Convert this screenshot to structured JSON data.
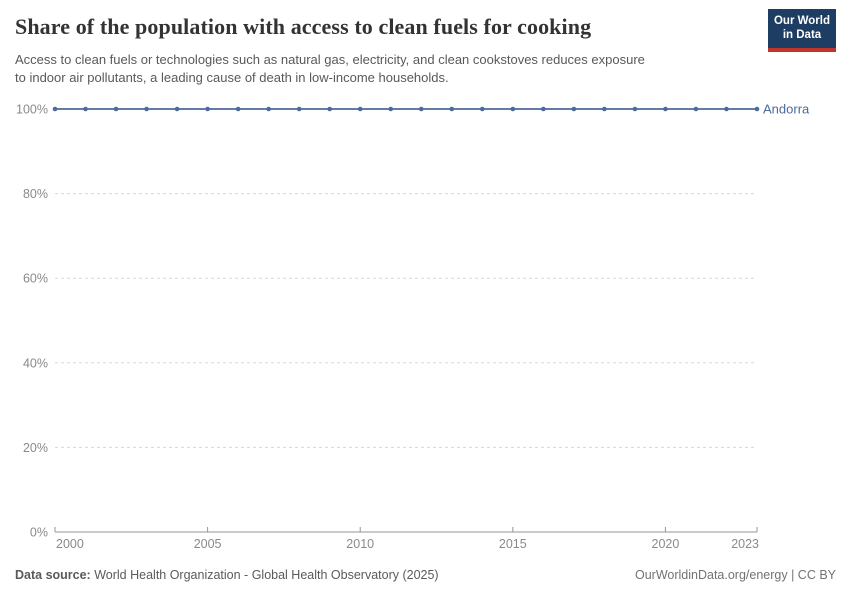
{
  "header": {
    "title": "Share of the population with access to clean fuels for cooking",
    "subtitle_line1": "Access to clean fuels or technologies such as natural gas, electricity, and clean cookstoves reduces exposure",
    "subtitle_line2": "to indoor air pollutants, a leading cause of death in low-income households.",
    "logo": {
      "line1": "Our World",
      "line2": "in Data",
      "bg_color": "#1d3d63",
      "bar_color": "#c0352b"
    }
  },
  "chart_data": {
    "type": "line",
    "title": "Share of the population with access to clean fuels for cooking",
    "xlabel": "",
    "ylabel": "",
    "xlim": [
      2000,
      2023
    ],
    "ylim": [
      0,
      100
    ],
    "x_ticks": [
      2000,
      2005,
      2010,
      2015,
      2020,
      2023
    ],
    "y_ticks": [
      0,
      20,
      40,
      60,
      80,
      100
    ],
    "y_tick_suffix": "%",
    "grid": "horizontal-dashed",
    "legend_position": "right-of-line-end",
    "series": [
      {
        "name": "Andorra",
        "color": "#4c6a9c",
        "x": [
          2000,
          2001,
          2002,
          2003,
          2004,
          2005,
          2006,
          2007,
          2008,
          2009,
          2010,
          2011,
          2012,
          2013,
          2014,
          2015,
          2016,
          2017,
          2018,
          2019,
          2020,
          2021,
          2022,
          2023
        ],
        "values": [
          100,
          100,
          100,
          100,
          100,
          100,
          100,
          100,
          100,
          100,
          100,
          100,
          100,
          100,
          100,
          100,
          100,
          100,
          100,
          100,
          100,
          100,
          100,
          100
        ]
      }
    ],
    "colors": {
      "grid": "#d8d8d8",
      "axis": "#949494",
      "tick_label": "#8a8a8a"
    }
  },
  "footer": {
    "source_label": "Data source:",
    "source_text": "World Health Organization - Global Health Observatory (2025)",
    "rights": "OurWorldinData.org/energy | CC BY"
  }
}
